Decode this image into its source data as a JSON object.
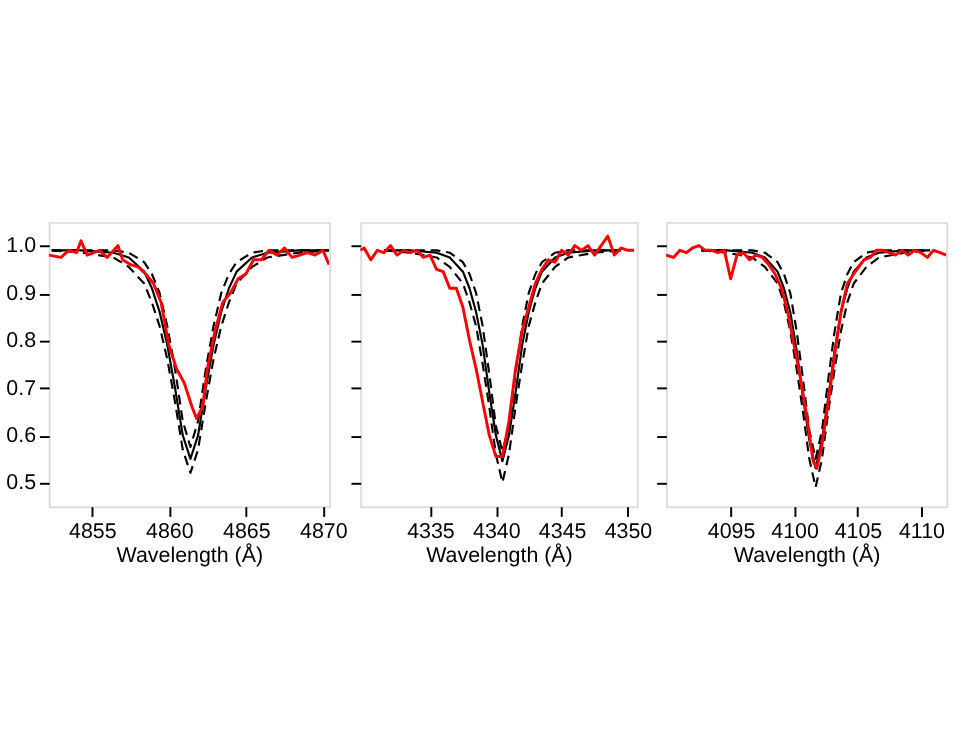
{
  "chart_data": [
    {
      "type": "line",
      "xlabel": "Wavelength (Å)",
      "xlim": [
        4852.2,
        4870.4
      ],
      "xticks": [
        4855,
        4860,
        4865,
        4870
      ],
      "ylim": [
        0.45,
        1.05
      ],
      "yticks": [
        0.5,
        0.6,
        0.7,
        0.8,
        0.9,
        {
          "value": 1,
          "label": "1.0"
        }
      ],
      "grid": false,
      "series": [
        {
          "color": "#000000",
          "line_style": "dashed",
          "x": [
            4852.4,
            4854.4,
            4856.4,
            4857.4,
            4858.4,
            4858.9,
            4859.4,
            4859.9,
            4860.4,
            4860.9,
            4861.4,
            4861.9,
            4862.4,
            4862.9,
            4863.4,
            4863.9,
            4864.4,
            4865.4,
            4866.4,
            4868.4,
            4870.4
          ],
          "values": [
            0.99,
            0.985,
            0.975,
            0.955,
            0.92,
            0.88,
            0.83,
            0.76,
            0.67,
            0.57,
            0.52,
            0.57,
            0.67,
            0.76,
            0.83,
            0.88,
            0.92,
            0.955,
            0.975,
            0.985,
            0.99
          ]
        },
        {
          "color": "#000000",
          "line_style": "dashed",
          "x": [
            4852.4,
            4854.4,
            4856.4,
            4857.4,
            4858.4,
            4858.9,
            4859.4,
            4859.9,
            4860.4,
            4860.9,
            4861.4,
            4861.9,
            4862.4,
            4862.9,
            4863.4,
            4863.9,
            4864.4,
            4865.4,
            4866.4,
            4868.4,
            4870.4
          ],
          "values": [
            0.99,
            0.99,
            0.99,
            0.985,
            0.965,
            0.94,
            0.9,
            0.83,
            0.74,
            0.63,
            0.575,
            0.63,
            0.74,
            0.83,
            0.9,
            0.94,
            0.965,
            0.985,
            0.99,
            0.99,
            0.99
          ]
        },
        {
          "color": "#000000",
          "line_style": "solid",
          "x": [
            4852.4,
            4854.4,
            4856.4,
            4857.4,
            4858.4,
            4858.9,
            4859.4,
            4859.9,
            4860.4,
            4860.9,
            4861.4,
            4861.9,
            4862.4,
            4862.9,
            4863.4,
            4863.9,
            4864.4,
            4865.4,
            4866.4,
            4868.4,
            4870.4
          ],
          "values": [
            0.99,
            0.99,
            0.985,
            0.975,
            0.945,
            0.91,
            0.86,
            0.79,
            0.7,
            0.6,
            0.55,
            0.6,
            0.7,
            0.79,
            0.86,
            0.91,
            0.945,
            0.975,
            0.985,
            0.99,
            0.99
          ]
        },
        {
          "color": "#ff0000",
          "line_style": "solid",
          "x": [
            4852.2,
            4853,
            4853.5,
            4854,
            4854.3,
            4854.7,
            4855.5,
            4856,
            4856.7,
            4857,
            4857.5,
            4858,
            4858.5,
            4859,
            4859.5,
            4860,
            4860.5,
            4861,
            4861.5,
            4861.8,
            4862.2,
            4862.5,
            4863,
            4863.5,
            4864,
            4864.5,
            4865,
            4865.5,
            4866,
            4866.5,
            4867,
            4867.5,
            4868,
            4868.5,
            4869,
            4869.5,
            4870,
            4870.4
          ],
          "values": [
            0.98,
            0.975,
            0.99,
            0.985,
            1.01,
            0.98,
            0.99,
            0.975,
            1.0,
            0.97,
            0.96,
            0.955,
            0.94,
            0.92,
            0.88,
            0.79,
            0.74,
            0.71,
            0.66,
            0.635,
            0.66,
            0.74,
            0.82,
            0.88,
            0.9,
            0.93,
            0.94,
            0.97,
            0.97,
            0.99,
            0.98,
            0.995,
            0.975,
            0.98,
            0.985,
            0.98,
            0.99,
            0.96
          ]
        }
      ]
    },
    {
      "type": "line",
      "xlabel": "Wavelength (Å)",
      "xlim": [
        4329.7,
        4350.7
      ],
      "xticks": [
        4335,
        4340,
        4345,
        4350
      ],
      "ylim": [
        0.45,
        1.05
      ],
      "yticks": [
        0.5,
        0.6,
        0.7,
        0.8,
        0.9,
        1.0
      ],
      "tick_labels": "x",
      "grid": false,
      "series": [
        {
          "color": "#000000",
          "line_style": "dashed",
          "x": [
            4331.5,
            4333.5,
            4335.5,
            4336.5,
            4337.5,
            4338,
            4338.5,
            4339,
            4339.5,
            4340,
            4340.5,
            4341,
            4341.5,
            4342,
            4342.5,
            4343,
            4343.5,
            4344.5,
            4345.5,
            4347.5,
            4349.5
          ],
          "values": [
            0.99,
            0.985,
            0.975,
            0.955,
            0.92,
            0.88,
            0.83,
            0.75,
            0.66,
            0.56,
            0.5,
            0.56,
            0.66,
            0.75,
            0.83,
            0.88,
            0.92,
            0.955,
            0.975,
            0.985,
            0.99
          ]
        },
        {
          "color": "#000000",
          "line_style": "dashed",
          "x": [
            4331.5,
            4333.5,
            4335.5,
            4336.5,
            4337.5,
            4338,
            4338.5,
            4339,
            4339.5,
            4340,
            4340.5,
            4341,
            4341.5,
            4342,
            4342.5,
            4343,
            4343.5,
            4344.5,
            4345.5,
            4347.5,
            4349.5
          ],
          "values": [
            0.99,
            0.99,
            0.99,
            0.985,
            0.965,
            0.94,
            0.9,
            0.83,
            0.73,
            0.62,
            0.565,
            0.62,
            0.73,
            0.83,
            0.9,
            0.94,
            0.965,
            0.985,
            0.99,
            0.99,
            0.99
          ]
        },
        {
          "color": "#000000",
          "line_style": "solid",
          "x": [
            4331.5,
            4333.5,
            4335.5,
            4336.5,
            4337.5,
            4338,
            4338.5,
            4339,
            4339.5,
            4340,
            4340.5,
            4341,
            4341.5,
            4342,
            4342.5,
            4343,
            4343.5,
            4344.5,
            4345.5,
            4347.5,
            4349.5
          ],
          "values": [
            0.99,
            0.99,
            0.985,
            0.975,
            0.945,
            0.91,
            0.86,
            0.79,
            0.69,
            0.6,
            0.545,
            0.6,
            0.69,
            0.79,
            0.86,
            0.91,
            0.945,
            0.975,
            0.985,
            0.99,
            0.99
          ]
        },
        {
          "color": "#ff0000",
          "line_style": "solid",
          "x": [
            4329.7,
            4330,
            4330.5,
            4331,
            4331.5,
            4332,
            4332.5,
            4333,
            4333.5,
            4334,
            4334.5,
            4335,
            4335.5,
            4336,
            4336.5,
            4337,
            4337.5,
            4338,
            4338.5,
            4339,
            4339.5,
            4340,
            4340.5,
            4341,
            4341.5,
            4342,
            4342.5,
            4343,
            4343.5,
            4344,
            4344.5,
            4345,
            4345.5,
            4346,
            4346.5,
            4347,
            4347.5,
            4348,
            4348.5,
            4349,
            4349.5,
            4350,
            4350.5
          ],
          "values": [
            0.99,
            0.995,
            0.97,
            0.99,
            0.985,
            1.0,
            0.98,
            0.99,
            0.985,
            0.99,
            0.975,
            0.98,
            0.95,
            0.945,
            0.91,
            0.91,
            0.87,
            0.8,
            0.74,
            0.67,
            0.6,
            0.555,
            0.555,
            0.63,
            0.74,
            0.82,
            0.87,
            0.92,
            0.95,
            0.97,
            0.965,
            0.99,
            0.98,
            1.0,
            0.99,
            1.0,
            0.98,
            1.0,
            1.02,
            0.98,
            0.995,
            0.99,
            0.99
          ]
        }
      ]
    },
    {
      "type": "line",
      "xlabel": "Wavelength (Å)",
      "xlim": [
        4089.9,
        4112
      ],
      "xticks": [
        4095,
        4100,
        4105,
        4110
      ],
      "ylim": [
        0.45,
        1.05
      ],
      "yticks": [
        0.5,
        0.6,
        0.7,
        0.8,
        0.9,
        1.0
      ],
      "tick_labels": "x",
      "grid": false,
      "series": [
        {
          "color": "#000000",
          "line_style": "dashed",
          "x": [
            4092.7,
            4094.7,
            4096.7,
            4097.7,
            4098.7,
            4099.2,
            4099.7,
            4100.2,
            4100.7,
            4101.2,
            4101.7,
            4102.2,
            4102.7,
            4103.2,
            4103.7,
            4104.2,
            4104.7,
            4105.7,
            4106.7,
            4108.7,
            4110.7
          ],
          "values": [
            0.99,
            0.985,
            0.975,
            0.955,
            0.92,
            0.88,
            0.82,
            0.74,
            0.65,
            0.55,
            0.49,
            0.55,
            0.65,
            0.74,
            0.82,
            0.88,
            0.92,
            0.955,
            0.975,
            0.985,
            0.99
          ]
        },
        {
          "color": "#000000",
          "line_style": "dashed",
          "x": [
            4092.7,
            4094.7,
            4096.7,
            4097.7,
            4098.7,
            4099.2,
            4099.7,
            4100.2,
            4100.7,
            4101.2,
            4101.7,
            4102.2,
            4102.7,
            4103.2,
            4103.7,
            4104.2,
            4104.7,
            4105.7,
            4106.7,
            4108.7,
            4110.7
          ],
          "values": [
            0.99,
            0.99,
            0.99,
            0.985,
            0.965,
            0.94,
            0.9,
            0.82,
            0.72,
            0.61,
            0.55,
            0.61,
            0.72,
            0.82,
            0.9,
            0.94,
            0.965,
            0.985,
            0.99,
            0.99,
            0.99
          ]
        },
        {
          "color": "#000000",
          "line_style": "solid",
          "x": [
            4092.7,
            4094.7,
            4096.7,
            4097.7,
            4098.7,
            4099.2,
            4099.7,
            4100.2,
            4100.7,
            4101.2,
            4101.7,
            4102.2,
            4102.7,
            4103.2,
            4103.7,
            4104.2,
            4104.7,
            4105.7,
            4106.7,
            4108.7,
            4110.7
          ],
          "values": [
            0.99,
            0.99,
            0.985,
            0.975,
            0.945,
            0.91,
            0.86,
            0.78,
            0.68,
            0.59,
            0.53,
            0.59,
            0.68,
            0.78,
            0.86,
            0.91,
            0.945,
            0.975,
            0.985,
            0.99,
            0.99
          ]
        },
        {
          "color": "#ff0000",
          "line_style": "solid",
          "x": [
            4089.9,
            4090.5,
            4091,
            4091.5,
            4092,
            4092.5,
            4093,
            4093.5,
            4094,
            4094.5,
            4095,
            4095.5,
            4096,
            4096.5,
            4097,
            4097.5,
            4098,
            4098.5,
            4099,
            4099.5,
            4100,
            4100.5,
            4101,
            4101.5,
            4101.8,
            4102.2,
            4102.7,
            4103.2,
            4103.7,
            4104.2,
            4104.7,
            4105.5,
            4106,
            4106.5,
            4107,
            4107.5,
            4108,
            4108.5,
            4109,
            4109.5,
            4110,
            4110.5,
            4111,
            4111.5,
            4112
          ],
          "values": [
            0.98,
            0.975,
            0.99,
            0.985,
            0.995,
            1.0,
            0.99,
            0.99,
            0.985,
            0.99,
            0.93,
            0.98,
            0.985,
            0.97,
            0.98,
            0.975,
            0.96,
            0.94,
            0.91,
            0.86,
            0.79,
            0.72,
            0.64,
            0.545,
            0.53,
            0.58,
            0.67,
            0.77,
            0.86,
            0.92,
            0.94,
            0.97,
            0.975,
            0.99,
            0.99,
            0.985,
            0.98,
            0.99,
            0.98,
            0.99,
            0.985,
            0.975,
            0.99,
            0.985,
            0.98
          ]
        }
      ]
    }
  ]
}
